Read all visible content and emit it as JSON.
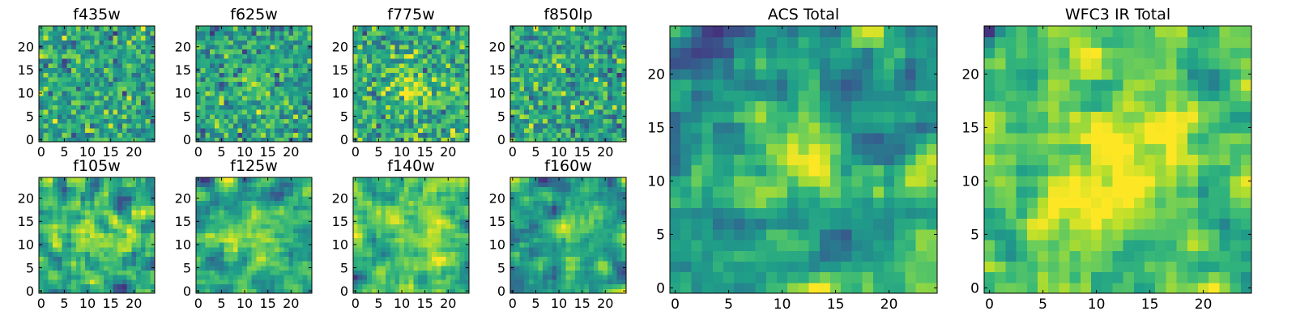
{
  "figure": {
    "colormap": "viridis"
  },
  "chart_data": [
    {
      "type": "heatmap",
      "title": "f435w",
      "xlim": [
        0,
        24
      ],
      "ylim": [
        0,
        24
      ],
      "xticks": [
        0,
        5,
        10,
        15,
        20
      ],
      "yticks": [
        0,
        5,
        10,
        15,
        20
      ],
      "texture": "noise",
      "smoothness": 0,
      "seed": 11,
      "blobs": []
    },
    {
      "type": "heatmap",
      "title": "f625w",
      "xlim": [
        0,
        24
      ],
      "ylim": [
        0,
        24
      ],
      "xticks": [
        0,
        5,
        10,
        15,
        20
      ],
      "yticks": [
        0,
        5,
        10,
        15,
        20
      ],
      "texture": "noise",
      "smoothness": 0,
      "seed": 23,
      "blobs": [
        {
          "x": 12,
          "y": 12,
          "r": 3,
          "amp": 0.2
        }
      ]
    },
    {
      "type": "heatmap",
      "title": "f775w",
      "xlim": [
        0,
        24
      ],
      "ylim": [
        0,
        24
      ],
      "xticks": [
        0,
        5,
        10,
        15,
        20
      ],
      "yticks": [
        0,
        5,
        10,
        15,
        20
      ],
      "texture": "noise",
      "smoothness": 0,
      "seed": 37,
      "blobs": [
        {
          "x": 13,
          "y": 11,
          "r": 3,
          "amp": 0.25
        }
      ]
    },
    {
      "type": "heatmap",
      "title": "f850lp",
      "xlim": [
        0,
        24
      ],
      "ylim": [
        0,
        24
      ],
      "xticks": [
        0,
        5,
        10,
        15,
        20
      ],
      "yticks": [
        0,
        5,
        10,
        15,
        20
      ],
      "texture": "noise",
      "smoothness": 0,
      "seed": 41,
      "blobs": []
    },
    {
      "type": "heatmap",
      "title": "f105w",
      "xlim": [
        0,
        24
      ],
      "ylim": [
        0,
        24
      ],
      "xticks": [
        0,
        5,
        10,
        15,
        20
      ],
      "yticks": [
        0,
        5,
        10,
        15,
        20
      ],
      "texture": "smooth",
      "smoothness": 1,
      "seed": 53,
      "blobs": [
        {
          "x": 12,
          "y": 12,
          "r": 4,
          "amp": 0.2
        }
      ]
    },
    {
      "type": "heatmap",
      "title": "f125w",
      "xlim": [
        0,
        24
      ],
      "ylim": [
        0,
        24
      ],
      "xticks": [
        0,
        5,
        10,
        15,
        20
      ],
      "yticks": [
        0,
        5,
        10,
        15,
        20
      ],
      "texture": "smooth",
      "smoothness": 1,
      "seed": 67,
      "blobs": [
        {
          "x": 12,
          "y": 12,
          "r": 4,
          "amp": 0.2
        }
      ]
    },
    {
      "type": "heatmap",
      "title": "f140w",
      "xlim": [
        0,
        24
      ],
      "ylim": [
        0,
        24
      ],
      "xticks": [
        0,
        5,
        10,
        15,
        20
      ],
      "yticks": [
        0,
        5,
        10,
        15,
        20
      ],
      "texture": "smooth",
      "smoothness": 1,
      "seed": 79,
      "blobs": [
        {
          "x": 13,
          "y": 12,
          "r": 4,
          "amp": 0.2
        }
      ]
    },
    {
      "type": "heatmap",
      "title": "f160w",
      "xlim": [
        0,
        24
      ],
      "ylim": [
        0,
        24
      ],
      "xticks": [
        0,
        5,
        10,
        15,
        20
      ],
      "yticks": [
        0,
        5,
        10,
        15,
        20
      ],
      "texture": "smooth",
      "smoothness": 1,
      "seed": 83,
      "blobs": [
        {
          "x": 13,
          "y": 13,
          "r": 3,
          "amp": 0.3
        }
      ]
    },
    {
      "type": "heatmap",
      "title": "ACS Total",
      "xlim": [
        0,
        24
      ],
      "ylim": [
        0,
        24
      ],
      "xticks": [
        0,
        5,
        10,
        15,
        20
      ],
      "yticks": [
        0,
        5,
        10,
        15,
        20
      ],
      "texture": "noise",
      "smoothness": 1,
      "seed": 97,
      "blobs": [
        {
          "x": 12,
          "y": 11.5,
          "r": 3.5,
          "amp": 0.35
        }
      ]
    },
    {
      "type": "heatmap",
      "title": "WFC3 IR Total",
      "xlim": [
        0,
        24
      ],
      "ylim": [
        0,
        24
      ],
      "xticks": [
        0,
        5,
        10,
        15,
        20
      ],
      "yticks": [
        0,
        5,
        10,
        15,
        20
      ],
      "texture": "smooth",
      "smoothness": 1,
      "seed": 101,
      "blobs": [
        {
          "x": 12,
          "y": 12,
          "r": 4.5,
          "amp": 0.45
        }
      ]
    }
  ]
}
